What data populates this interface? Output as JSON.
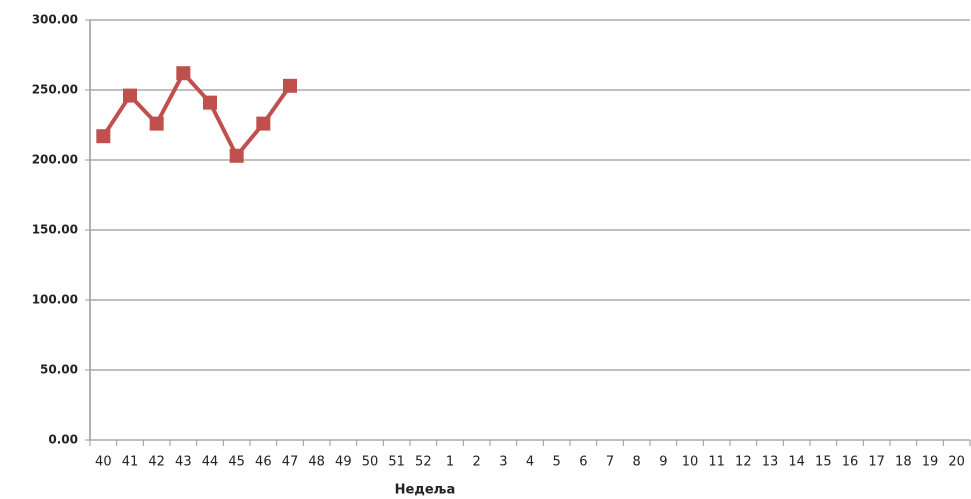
{
  "chart_data": {
    "type": "line",
    "x_label": "Недеља",
    "categories": [
      "40",
      "41",
      "42",
      "43",
      "44",
      "45",
      "46",
      "47",
      "48",
      "49",
      "50",
      "51",
      "52",
      "1",
      "2",
      "3",
      "4",
      "5",
      "6",
      "7",
      "8",
      "9",
      "10",
      "11",
      "12",
      "13",
      "14",
      "15",
      "16",
      "17",
      "18",
      "19",
      "20"
    ],
    "series": [
      {
        "color": "#c0504d",
        "values": [
          217,
          246,
          226,
          262,
          241,
          203,
          226,
          253,
          null,
          null,
          null,
          null,
          null,
          null,
          null,
          null,
          null,
          null,
          null,
          null,
          null,
          null,
          null,
          null,
          null,
          null,
          null,
          null,
          null,
          null,
          null,
          null,
          null
        ]
      }
    ],
    "ylim": [
      0,
      300
    ],
    "yticks": [
      {
        "value": 0,
        "label": "0.00"
      },
      {
        "value": 50,
        "label": "50.00"
      },
      {
        "value": 100,
        "label": "100.00"
      },
      {
        "value": 150,
        "label": "150.00"
      },
      {
        "value": 200,
        "label": "200.00"
      },
      {
        "value": 250,
        "label": "250.00"
      },
      {
        "value": 300,
        "label": "300.00"
      }
    ],
    "grid": true
  }
}
